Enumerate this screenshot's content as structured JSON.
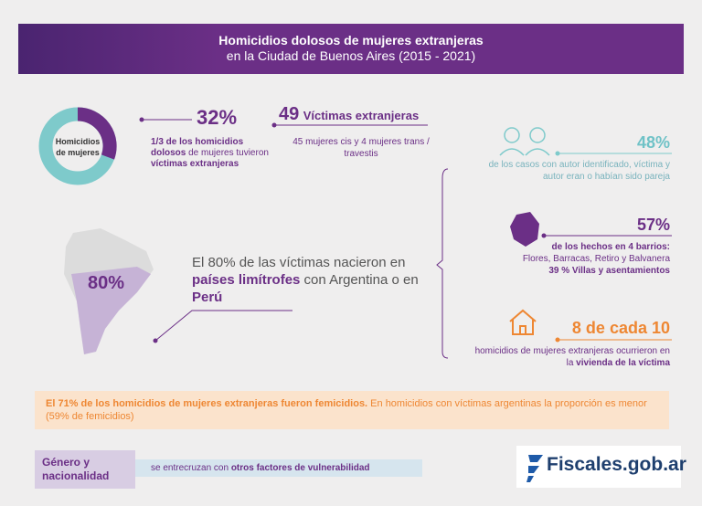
{
  "header": {
    "title": "Homicidios dolosos de mujeres extranjeras",
    "subtitle": "en la Ciudad de Buenos Aires (2015 - 2021)"
  },
  "donut": {
    "label": [
      "Homicidios",
      "de mujeres"
    ]
  },
  "stat_share": {
    "value": "32%",
    "text": [
      "1/3 de los homicidios dolosos",
      " de mujeres tuvieron ",
      "víctimas extranjeras"
    ]
  },
  "stat_victims": {
    "value": "49",
    "label": "Víctimas extranjeras",
    "text": "45 mujeres cis y 4 mujeres trans / travestis"
  },
  "map": {
    "value": "80%",
    "text": [
      "El 80% de las víctimas nacieron en ",
      "países limítrofes",
      " con Argentina o en ",
      "Perú"
    ]
  },
  "facts": [
    {
      "value": "48%",
      "text": [
        "de los casos con autor identificado, víctima y autor eran o habían sido pareja"
      ]
    },
    {
      "value": "57%",
      "text": [
        "de los hechos en 4 barrios:",
        "Flores, Barracas, Retiro y Balvanera",
        "39 % Villas y asentamientos"
      ]
    },
    {
      "value": "8 de cada 10",
      "text": [
        "homicidios de mujeres extranjeras ocurrieron en la ",
        "vivienda de la víctima"
      ]
    }
  ],
  "banner": [
    "El 71% de los homicidios de mujeres extranjeras fueron femicidios.",
    " En homicidios con víctimas argentinas la proporción es menor (59% de femicidios)"
  ],
  "footer": {
    "tag": "Género y nacionalidad",
    "text": [
      "se entrecruzan con ",
      "otros factores de vulnerabilidad"
    ],
    "logo": "Fiscales.gob.ar"
  }
}
